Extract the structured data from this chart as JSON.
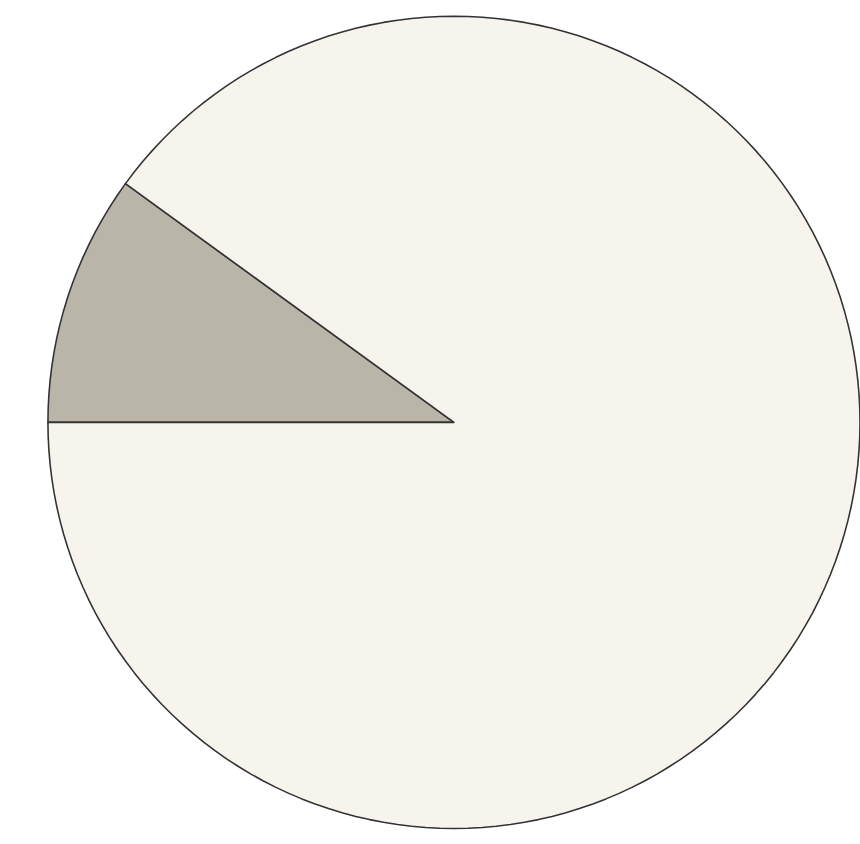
{
  "chart_data": {
    "type": "pie",
    "categories": [
      null,
      null
    ],
    "values": [
      10,
      90
    ],
    "colors": [
      "#b9b5a8",
      "#f6f4ec"
    ]
  }
}
